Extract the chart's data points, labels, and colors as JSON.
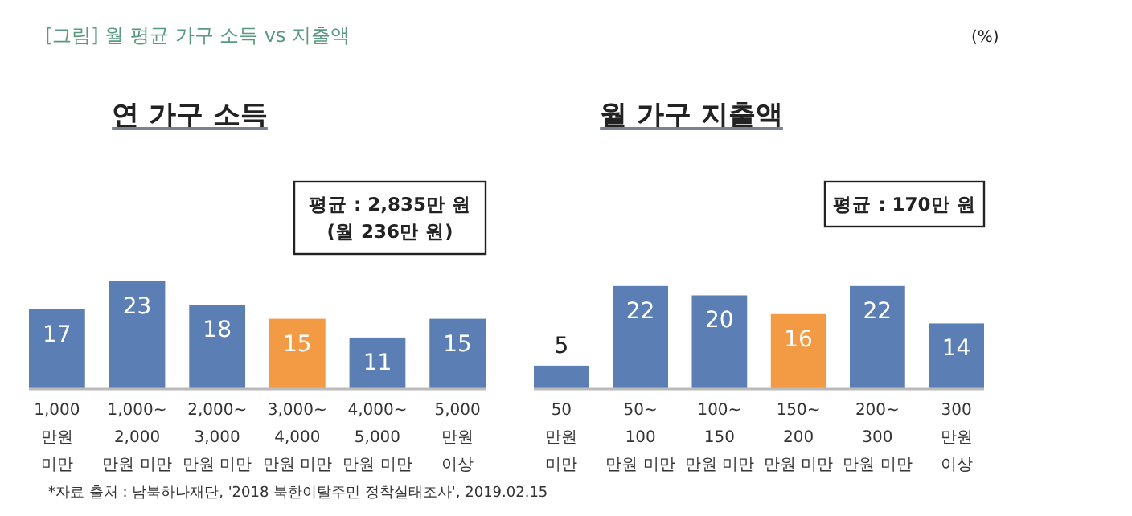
{
  "chart_data": [
    {
      "type": "bar",
      "title": "연 가구 소득",
      "categories": [
        "1,000\n만원\n미만",
        "1,000~\n2,000\n만원 미만",
        "2,000~\n3,000\n만원 미만",
        "3,000~\n4,000\n만원 미만",
        "4,000~\n5,000\n만원 미만",
        "5,000\n만원\n이상"
      ],
      "values": [
        17,
        23,
        18,
        15,
        11,
        15
      ],
      "colors": [
        "#5b7fb5",
        "#5b7fb5",
        "#5b7fb5",
        "#f39a45",
        "#5b7fb5",
        "#5b7fb5"
      ],
      "data_labels": true,
      "annotations": [
        "[그림] 월 평균 가구 소득 vs 지출액",
        "평균 : 2,835만 원\n(월 236만 원)",
        "*자료 출처 : 남북하나재단, '2018 북한이탈주민 정착실태조사', 2019.02.15"
      ]
    },
    {
      "type": "bar",
      "title": "월 가구 지출액",
      "categories": [
        "50\n만원\n미만",
        "50~\n100\n만원 미만",
        "100~\n150\n만원 미만",
        "150~\n200\n만원 미만",
        "200~\n300\n만원 미만",
        "300\n만원\n이상"
      ],
      "values": [
        5,
        22,
        20,
        16,
        22,
        14
      ],
      "colors": [
        "#5b7fb5",
        "#5b7fb5",
        "#5b7fb5",
        "#f39a45",
        "#5b7fb5",
        "#5b7fb5"
      ],
      "data_labels": true,
      "annotations": [
        "(%)",
        "평균 : 170만 원"
      ]
    }
  ]
}
